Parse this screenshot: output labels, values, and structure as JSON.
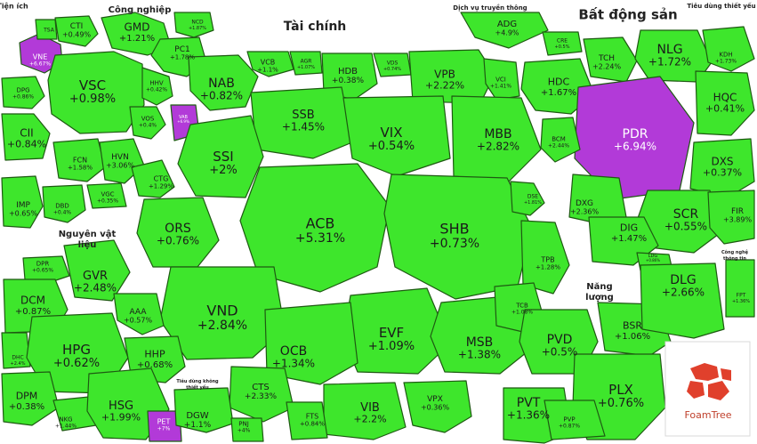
{
  "chart_data": {
    "type": "heatmap",
    "colors": {
      "up": "#3ee62c",
      "up_light": "#5cf04a",
      "strong": "#b23ad8",
      "bg": "#ffffff",
      "border": "#1e5a12"
    },
    "sectors": [
      {
        "name": "Tiện ích",
        "stocks": [
          {
            "name": "VNE",
            "change": "+6.67%",
            "strong": true
          },
          {
            "name": "DPG",
            "change": "+0.86%"
          },
          {
            "name": "CII",
            "change": "+0.84%"
          }
        ]
      },
      {
        "name": "Công nghiệp",
        "stocks": [
          {
            "name": "CTI",
            "change": "+0.49%"
          },
          {
            "name": "TSA",
            "change": ""
          },
          {
            "name": "GMD",
            "change": "+1.21%"
          },
          {
            "name": "NCD",
            "change": "+1.87%"
          },
          {
            "name": "PC1",
            "change": "+1.78%"
          },
          {
            "name": "VSC",
            "change": "+0.98%"
          },
          {
            "name": "HHV",
            "change": "+0.42%"
          },
          {
            "name": "VOS",
            "change": "+0.4%"
          },
          {
            "name": "FCN",
            "change": "+1.58%"
          },
          {
            "name": "HVN",
            "change": "+3.06%"
          },
          {
            "name": "CTG",
            "change": "+1.29%"
          },
          {
            "name": "VGC",
            "change": "+0.35%"
          }
        ]
      },
      {
        "name": "Tài chính",
        "stocks": [
          {
            "name": "NAB",
            "change": "+0.82%"
          },
          {
            "name": "VCB",
            "change": "+1.1%"
          },
          {
            "name": "AGR",
            "change": "+1.07%"
          },
          {
            "name": "HDB",
            "change": "+0.38%"
          },
          {
            "name": "VDS",
            "change": "+0.74%"
          },
          {
            "name": "VPB",
            "change": "+2.22%"
          },
          {
            "name": "VCI",
            "change": "+1.41%"
          },
          {
            "name": "SSB",
            "change": "+1.45%"
          },
          {
            "name": "VIX",
            "change": "+0.54%"
          },
          {
            "name": "MBB",
            "change": "+2.82%"
          },
          {
            "name": "VAB",
            "change": "+6.9%",
            "strong": true
          },
          {
            "name": "SSI",
            "change": "+2%"
          },
          {
            "name": "ACB",
            "change": "+5.31%"
          },
          {
            "name": "SHB",
            "change": "+0.73%"
          },
          {
            "name": "DSE",
            "change": "+1.81%"
          },
          {
            "name": "ORS",
            "change": "+0.76%"
          },
          {
            "name": "TPB",
            "change": "+1.28%"
          },
          {
            "name": "VND",
            "change": "+2.84%"
          },
          {
            "name": "EVF",
            "change": "+1.09%"
          },
          {
            "name": "MSB",
            "change": "+1.38%"
          },
          {
            "name": "TCB",
            "change": "+1.08%"
          },
          {
            "name": "OCB",
            "change": "+1.34%"
          },
          {
            "name": "CTS",
            "change": "+2.33%"
          },
          {
            "name": "VIB",
            "change": "+2.2%"
          },
          {
            "name": "VPX",
            "change": "+0.36%"
          },
          {
            "name": "FTS",
            "change": "+0.84%"
          }
        ]
      },
      {
        "name": "Dịch vụ truyền thông",
        "stocks": [
          {
            "name": "ADG",
            "change": "+4.9%"
          }
        ]
      },
      {
        "name": "Bất động sản",
        "stocks": [
          {
            "name": "CRE",
            "change": "+0.5%"
          },
          {
            "name": "TCH",
            "change": "+2.24%"
          },
          {
            "name": "NLG",
            "change": "+1.72%"
          },
          {
            "name": "HDC",
            "change": "+1.67%"
          },
          {
            "name": "PDR",
            "change": "+6.94%",
            "strong": true
          },
          {
            "name": "HQC",
            "change": "+0.41%"
          },
          {
            "name": "BCM",
            "change": "+2.44%"
          },
          {
            "name": "DXS",
            "change": "+0.37%"
          },
          {
            "name": "DXG",
            "change": "+2.36%"
          },
          {
            "name": "SCR",
            "change": "+0.55%"
          },
          {
            "name": "DIG",
            "change": "+1.47%"
          },
          {
            "name": "FIR",
            "change": "+3.89%"
          },
          {
            "name": "LDG",
            "change": "+0.86%"
          }
        ]
      },
      {
        "name": "Tiêu dùng thiết yếu",
        "stocks": [
          {
            "name": "KDH",
            "change": "+1.73%"
          }
        ]
      },
      {
        "name": "Nguyên vật liệu",
        "stocks": [
          {
            "name": "IMP",
            "change": "+0.65%"
          },
          {
            "name": "DBD",
            "change": "+0.4%"
          },
          {
            "name": "DPR",
            "change": "+0.65%"
          },
          {
            "name": "GVR",
            "change": "+2.48%"
          },
          {
            "name": "DCM",
            "change": "+0.87%"
          },
          {
            "name": "AAA",
            "change": "+0.57%"
          },
          {
            "name": "DHC",
            "change": "+2.4%"
          },
          {
            "name": "HPG",
            "change": "+0.62%"
          },
          {
            "name": "HHP",
            "change": "+0.68%"
          },
          {
            "name": "DPM",
            "change": "+0.38%"
          },
          {
            "name": "NKG",
            "change": "+1.44%"
          },
          {
            "name": "HSG",
            "change": "+1.99%"
          }
        ]
      },
      {
        "name": "Năng lượng",
        "stocks": [
          {
            "name": "PVD",
            "change": "+0.5%"
          },
          {
            "name": "BSR",
            "change": "+1.06%"
          },
          {
            "name": "PVT",
            "change": "+1.36%"
          },
          {
            "name": "PLX",
            "change": "+0.76%"
          },
          {
            "name": "PVP",
            "change": "+0.87%"
          }
        ]
      },
      {
        "name": "Công nghệ thông tin",
        "stocks": [
          {
            "name": "DLG",
            "change": "+2.66%"
          },
          {
            "name": "FPT",
            "change": "+1.36%"
          }
        ]
      },
      {
        "name": "Tiêu dùng không thiết yếu",
        "stocks": [
          {
            "name": "PET",
            "change": "+7%",
            "strong": true
          },
          {
            "name": "DGW",
            "change": "+1.1%"
          },
          {
            "name": "PNJ",
            "change": "+4%"
          }
        ]
      }
    ]
  },
  "branding": {
    "logo_text": "FoamTree"
  }
}
